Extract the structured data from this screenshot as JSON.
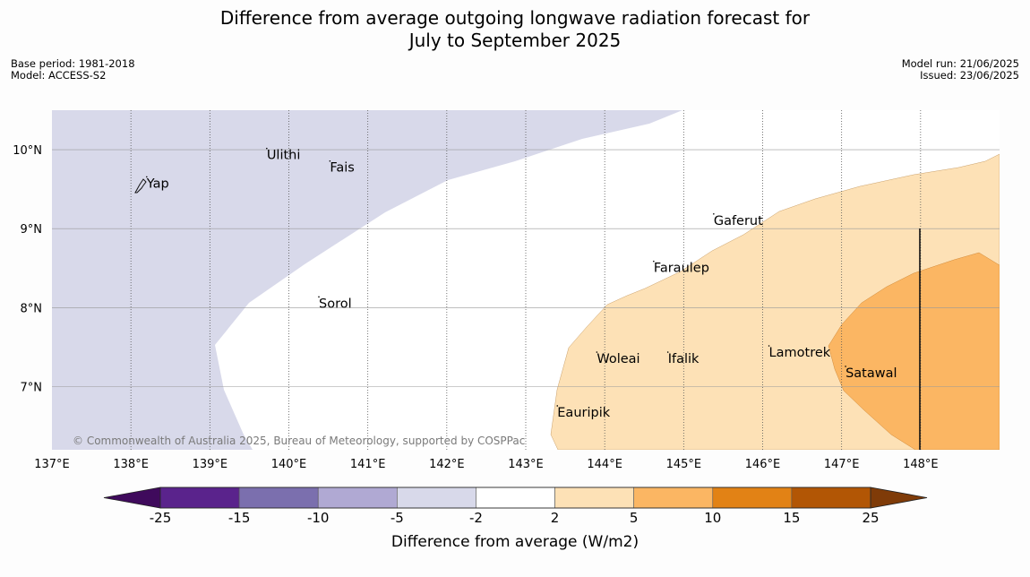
{
  "title_line1": "Difference from average outgoing longwave radiation forecast for",
  "title_line2": "July to September 2025",
  "meta_left": [
    "Base period: 1981-2018",
    "Model: ACCESS-S2"
  ],
  "meta_right": [
    "Model run: 21/06/2025",
    "Issued: 23/06/2025"
  ],
  "copyright": "© Commonwealth of Australia 2025, Bureau of Meteorology, supported by COSPPac",
  "map": {
    "lon_range": [
      137,
      149
    ],
    "lat_range": [
      6.2,
      10.5
    ],
    "lon_ticks": [
      "137°E",
      "138°E",
      "139°E",
      "140°E",
      "141°E",
      "142°E",
      "143°E",
      "144°E",
      "145°E",
      "146°E",
      "147°E",
      "148°E"
    ],
    "lat_ticks": [
      "7°N",
      "8°N",
      "9°N",
      "10°N"
    ],
    "places": [
      {
        "name": "Yap",
        "lon": 138.2,
        "lat": 9.52
      },
      {
        "name": "Ulithi",
        "lon": 139.72,
        "lat": 9.88
      },
      {
        "name": "Fais",
        "lon": 140.52,
        "lat": 9.72
      },
      {
        "name": "Sorol",
        "lon": 140.38,
        "lat": 8.0
      },
      {
        "name": "Gaferut",
        "lon": 145.38,
        "lat": 9.05
      },
      {
        "name": "Faraulep",
        "lon": 144.62,
        "lat": 8.45
      },
      {
        "name": "Lamotrek",
        "lon": 146.08,
        "lat": 7.38
      },
      {
        "name": "Woleai",
        "lon": 143.9,
        "lat": 7.3
      },
      {
        "name": "Ifalik",
        "lon": 144.8,
        "lat": 7.3
      },
      {
        "name": "Satawal",
        "lon": 147.05,
        "lat": 7.12
      },
      {
        "name": "Eauripik",
        "lon": 143.4,
        "lat": 6.62
      }
    ]
  },
  "colorbar": {
    "title": "Difference from average (W/m2)",
    "bounds": [
      "-25",
      "-15",
      "-10",
      "-5",
      "-2",
      "2",
      "5",
      "10",
      "15",
      "25"
    ],
    "colors": [
      "#3f0a5c",
      "#5a238c",
      "#7b6fae",
      "#b0a9d3",
      "#d8d9ea",
      "#ffffff",
      "#fde1b6",
      "#fbb663",
      "#e28215",
      "#b25605",
      "#7f3b08"
    ]
  }
}
